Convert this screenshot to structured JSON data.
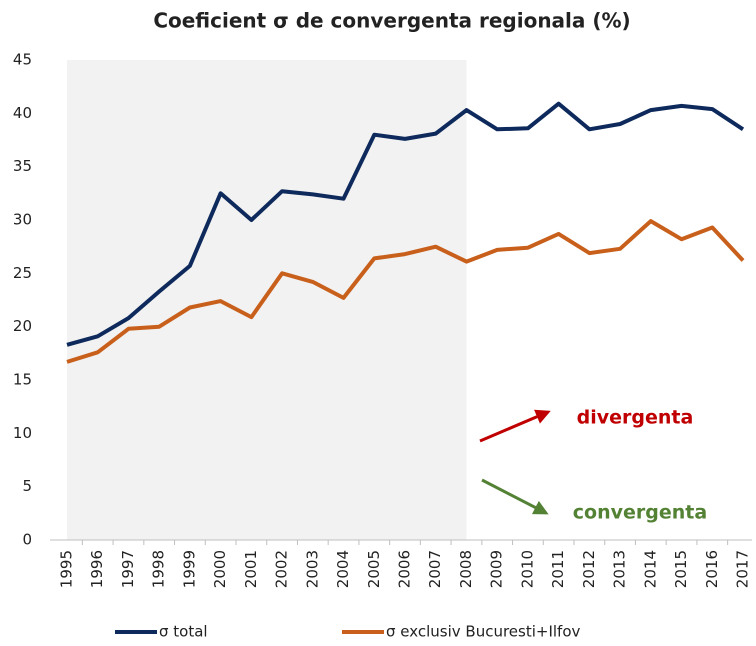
{
  "chart_data": {
    "type": "line",
    "title": "Coeficient σ de convergenta regionala (%)",
    "categories": [
      "1995",
      "1996",
      "1997",
      "1998",
      "1999",
      "2000",
      "2001",
      "2002",
      "2003",
      "2004",
      "2005",
      "2006",
      "2007",
      "2008",
      "2009",
      "2010",
      "2011",
      "2012",
      "2013",
      "2014",
      "2015",
      "2016",
      "2017"
    ],
    "series": [
      {
        "name": "σ total",
        "color": "#0e2a5c",
        "values": [
          18.3,
          19.1,
          20.8,
          23.3,
          25.7,
          32.5,
          30.0,
          32.7,
          32.4,
          32.0,
          38.0,
          37.6,
          38.1,
          40.3,
          38.5,
          38.6,
          40.9,
          38.5,
          39.0,
          40.3,
          40.7,
          40.4,
          38.5
        ]
      },
      {
        "name": "σ exclusiv Bucuresti+Ilfov",
        "color": "#c8601c",
        "values": [
          16.7,
          17.6,
          19.8,
          20.0,
          21.8,
          22.4,
          20.9,
          25.0,
          24.2,
          22.7,
          26.4,
          26.8,
          27.5,
          26.1,
          27.2,
          27.4,
          28.7,
          26.9,
          27.3,
          29.9,
          28.2,
          29.3,
          26.2
        ]
      }
    ],
    "ylim": [
      0,
      45
    ],
    "yticks": [
      0,
      5,
      10,
      15,
      20,
      25,
      30,
      35,
      40,
      45
    ],
    "grid": false,
    "shaded_categories": [
      0,
      13
    ],
    "shade_color": "#f2f2f2",
    "legend": "bottom",
    "annotations": [
      {
        "text": "divergenta",
        "color": "#c00000"
      },
      {
        "text": "convergenta",
        "color": "#548235"
      }
    ]
  }
}
